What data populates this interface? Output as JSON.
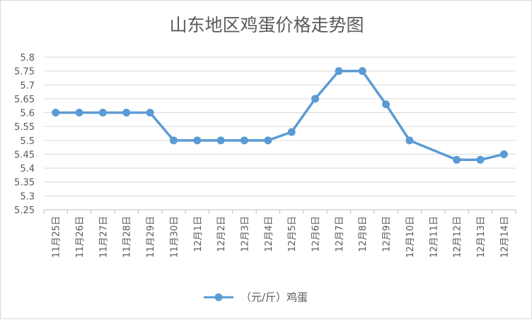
{
  "chart_data": {
    "type": "line",
    "title": "山东地区鸡蛋价格走势图",
    "xlabel": "",
    "ylabel": "",
    "ylim": [
      5.25,
      5.8
    ],
    "yticks": [
      "5.8",
      "5.75",
      "5.7",
      "5.65",
      "5.6",
      "5.55",
      "5.5",
      "5.45",
      "5.4",
      "5.35",
      "5.3",
      "5.25"
    ],
    "categories": [
      "11月25日",
      "11月26日",
      "11月27日",
      "11月28日",
      "11月29日",
      "11月30日",
      "12月1日",
      "12月2日",
      "12月3日",
      "12月4日",
      "12月5日",
      "12月6日",
      "12月7日",
      "12月8日",
      "12月9日",
      "12月10日",
      "12月11日",
      "12月12日",
      "12月13日",
      "12月14日"
    ],
    "series": [
      {
        "name": "（元/斤）鸡蛋",
        "values": [
          5.6,
          5.6,
          5.6,
          5.6,
          5.6,
          5.5,
          5.5,
          5.5,
          5.5,
          5.5,
          5.53,
          5.65,
          5.75,
          5.75,
          5.63,
          5.5,
          null,
          5.43,
          5.43,
          5.45
        ],
        "color": "#5b9bd5"
      }
    ],
    "grid": true,
    "legend": "bottom"
  }
}
